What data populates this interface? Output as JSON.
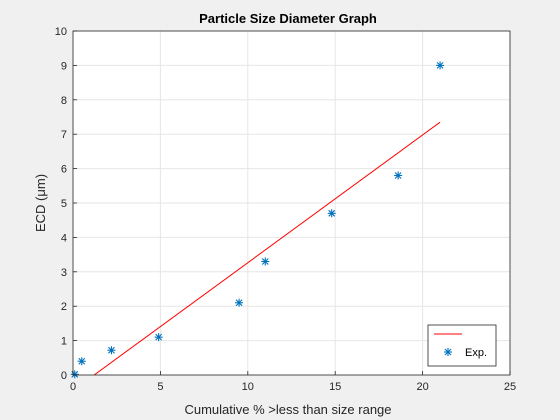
{
  "chart_data": {
    "type": "scatter",
    "title": "Particle Size Diameter Graph",
    "xlabel": "Cumulative % >less than size range",
    "ylabel": "ECD (μm)",
    "xlim": [
      0,
      25
    ],
    "ylim": [
      0,
      10
    ],
    "xticks": [
      "0",
      "5",
      "10",
      "15",
      "20",
      "25"
    ],
    "yticks": [
      "0",
      "1",
      "2",
      "3",
      "4",
      "5",
      "6",
      "7",
      "8",
      "9",
      "10"
    ],
    "grid": true,
    "legend_position": "bottom-right",
    "series": [
      {
        "label": "",
        "kind": "line",
        "color": "#ff0000",
        "x": [
          0,
          21
        ],
        "y": [
          -0.45,
          7.35
        ]
      },
      {
        "label": "Exp.",
        "kind": "scatter",
        "marker": "asterisk",
        "color": "#0072bd",
        "x": [
          0.1,
          0.5,
          2.2,
          4.9,
          9.5,
          11.0,
          14.8,
          18.6,
          21.0
        ],
        "y": [
          0.02,
          0.4,
          0.72,
          1.1,
          2.1,
          3.3,
          4.7,
          5.8,
          9.0
        ]
      }
    ]
  }
}
